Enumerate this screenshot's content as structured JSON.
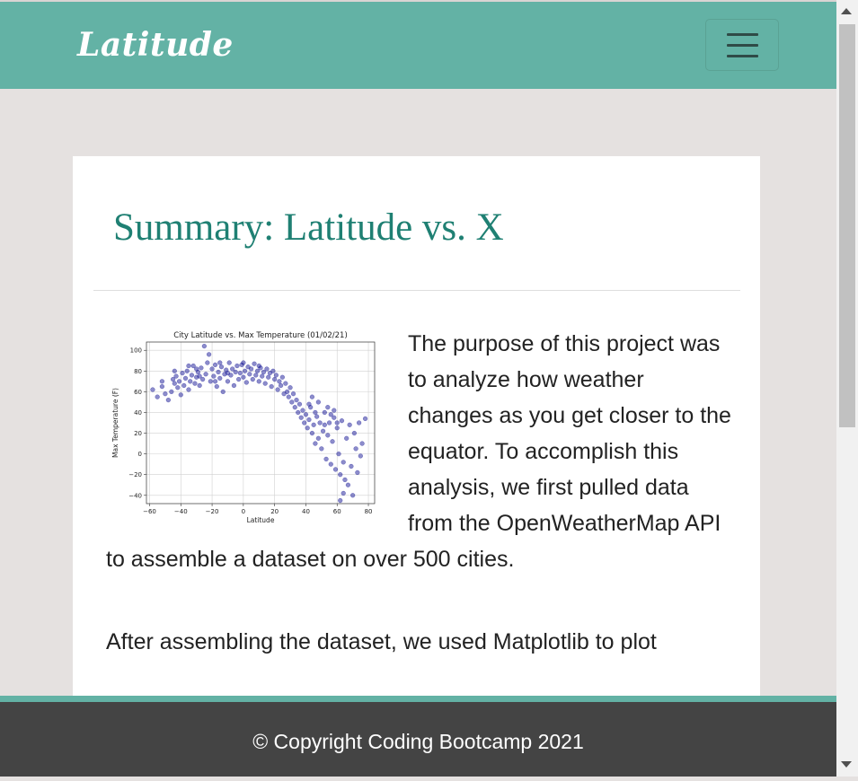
{
  "navbar": {
    "brand": "Latitude",
    "menu_icon": "hamburger-menu-icon"
  },
  "card": {
    "title": "Summary: Latitude vs. X",
    "paragraphs": [
      "The purpose of this project was to analyze how weather changes as you get closer to the equator. To accomplish this analysis, we first pulled data from the OpenWeatherMap API to assemble a dataset on over 500 cities.",
      "After assembling the dataset, we used Matplotlib to plot"
    ]
  },
  "footer": {
    "copyright": "© Copyright Coding Bootcamp 2021"
  },
  "colors": {
    "accent": "#63b2a5",
    "heading": "#1f8073",
    "footer_bg": "#444444",
    "page_bg": "#e5e1e0",
    "point": "#00008b"
  },
  "chart_data": {
    "type": "scatter",
    "title": "City Latitude vs. Max Temperature (01/02/21)",
    "xlabel": "Latitude",
    "ylabel": "Max Temperature (F)",
    "xlim": [
      -62,
      84
    ],
    "ylim": [
      -48,
      108
    ],
    "xticks": [
      -60,
      -40,
      -20,
      0,
      20,
      40,
      60,
      80
    ],
    "yticks": [
      -40,
      -20,
      0,
      20,
      40,
      60,
      80,
      100
    ],
    "grid": true,
    "points": [
      [
        -58,
        62
      ],
      [
        -55,
        55
      ],
      [
        -52,
        65
      ],
      [
        -50,
        58
      ],
      [
        -48,
        52
      ],
      [
        -46,
        60
      ],
      [
        -45,
        72
      ],
      [
        -44,
        68
      ],
      [
        -43,
        75
      ],
      [
        -42,
        64
      ],
      [
        -41,
        70
      ],
      [
        -40,
        57
      ],
      [
        -39,
        78
      ],
      [
        -38,
        66
      ],
      [
        -37,
        73
      ],
      [
        -36,
        80
      ],
      [
        -35,
        62
      ],
      [
        -34,
        70
      ],
      [
        -33,
        76
      ],
      [
        -32,
        85
      ],
      [
        -31,
        68
      ],
      [
        -30,
        74
      ],
      [
        -29,
        79
      ],
      [
        -28,
        66
      ],
      [
        -27,
        83
      ],
      [
        -26,
        72
      ],
      [
        -25,
        104
      ],
      [
        -24,
        77
      ],
      [
        -23,
        88
      ],
      [
        -22,
        96
      ],
      [
        -21,
        70
      ],
      [
        -20,
        82
      ],
      [
        -19,
        75
      ],
      [
        -18,
        86
      ],
      [
        -17,
        65
      ],
      [
        -16,
        79
      ],
      [
        -15,
        73
      ],
      [
        -14,
        84
      ],
      [
        -13,
        60
      ],
      [
        -12,
        77
      ],
      [
        -11,
        81
      ],
      [
        -10,
        70
      ],
      [
        -9,
        88
      ],
      [
        -8,
        76
      ],
      [
        -7,
        82
      ],
      [
        -6,
        66
      ],
      [
        -5,
        79
      ],
      [
        -4,
        85
      ],
      [
        -3,
        72
      ],
      [
        -2,
        78
      ],
      [
        -1,
        86
      ],
      [
        0,
        74
      ],
      [
        1,
        80
      ],
      [
        2,
        69
      ],
      [
        3,
        84
      ],
      [
        4,
        77
      ],
      [
        5,
        82
      ],
      [
        6,
        72
      ],
      [
        7,
        87
      ],
      [
        8,
        76
      ],
      [
        9,
        80
      ],
      [
        10,
        70
      ],
      [
        11,
        83
      ],
      [
        12,
        75
      ],
      [
        13,
        79
      ],
      [
        14,
        68
      ],
      [
        15,
        82
      ],
      [
        16,
        74
      ],
      [
        17,
        78
      ],
      [
        18,
        65
      ],
      [
        19,
        80
      ],
      [
        20,
        72
      ],
      [
        21,
        76
      ],
      [
        22,
        62
      ],
      [
        23,
        70
      ],
      [
        24,
        66
      ],
      [
        25,
        74
      ],
      [
        26,
        58
      ],
      [
        27,
        68
      ],
      [
        28,
        60
      ],
      [
        29,
        55
      ],
      [
        30,
        64
      ],
      [
        31,
        50
      ],
      [
        32,
        58
      ],
      [
        33,
        45
      ],
      [
        34,
        52
      ],
      [
        35,
        40
      ],
      [
        36,
        48
      ],
      [
        37,
        35
      ],
      [
        38,
        42
      ],
      [
        39,
        30
      ],
      [
        40,
        38
      ],
      [
        41,
        25
      ],
      [
        42,
        33
      ],
      [
        43,
        45
      ],
      [
        44,
        20
      ],
      [
        45,
        28
      ],
      [
        46,
        10
      ],
      [
        47,
        36
      ],
      [
        48,
        15
      ],
      [
        49,
        30
      ],
      [
        50,
        5
      ],
      [
        51,
        22
      ],
      [
        52,
        40
      ],
      [
        53,
        -5
      ],
      [
        54,
        18
      ],
      [
        55,
        30
      ],
      [
        56,
        -10
      ],
      [
        57,
        12
      ],
      [
        58,
        35
      ],
      [
        59,
        -15
      ],
      [
        60,
        25
      ],
      [
        61,
        0
      ],
      [
        62,
        -20
      ],
      [
        63,
        32
      ],
      [
        64,
        -8
      ],
      [
        65,
        -25
      ],
      [
        66,
        15
      ],
      [
        67,
        -30
      ],
      [
        68,
        28
      ],
      [
        69,
        -12
      ],
      [
        70,
        -40
      ],
      [
        71,
        20
      ],
      [
        72,
        5
      ],
      [
        73,
        -18
      ],
      [
        74,
        30
      ],
      [
        75,
        -2
      ],
      [
        76,
        10
      ],
      [
        78,
        34
      ],
      [
        62,
        -45
      ],
      [
        64,
        -38
      ],
      [
        56,
        38
      ],
      [
        58,
        42
      ],
      [
        60,
        30
      ],
      [
        52,
        28
      ],
      [
        54,
        45
      ],
      [
        48,
        50
      ],
      [
        46,
        40
      ],
      [
        44,
        55
      ],
      [
        42,
        48
      ],
      [
        -35,
        85
      ],
      [
        -30,
        82
      ],
      [
        -15,
        88
      ],
      [
        -10,
        78
      ],
      [
        0,
        88
      ],
      [
        10,
        85
      ],
      [
        -52,
        70
      ],
      [
        -44,
        80
      ],
      [
        -28,
        75
      ],
      [
        -18,
        70
      ]
    ]
  }
}
